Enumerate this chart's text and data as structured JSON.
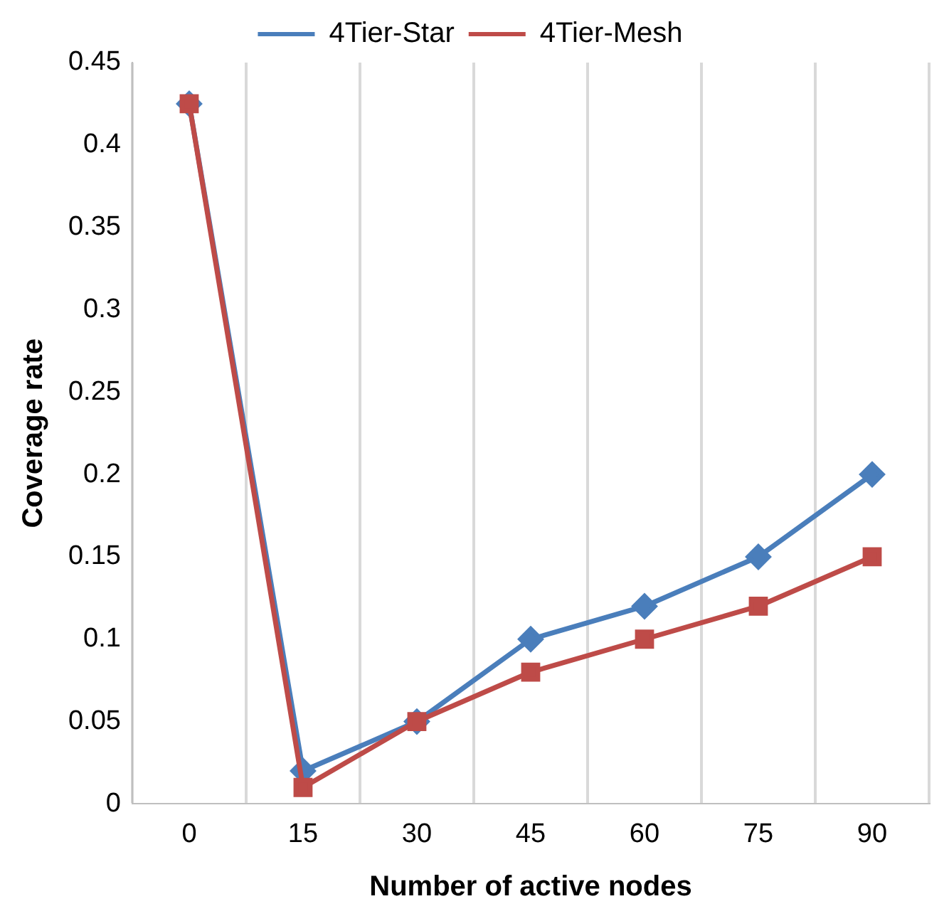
{
  "chart_data": {
    "type": "line",
    "xlabel": "Number of active nodes",
    "ylabel": "Coverage rate",
    "categories": [
      "0",
      "15",
      "30",
      "45",
      "60",
      "75",
      "90"
    ],
    "series": [
      {
        "name": "4Tier-Star",
        "color": "#4a7ebb",
        "marker": "diamond",
        "values": [
          0.425,
          0.02,
          0.05,
          0.1,
          0.12,
          0.15,
          0.2
        ]
      },
      {
        "name": "4Tier-Mesh",
        "color": "#be4b48",
        "marker": "square",
        "values": [
          0.425,
          0.01,
          0.05,
          0.08,
          0.1,
          0.12,
          0.15
        ]
      }
    ],
    "ylim": [
      0,
      0.45
    ],
    "yticks": [
      0,
      0.05,
      0.1,
      0.15,
      0.2,
      0.25,
      0.3,
      0.35,
      0.4,
      0.45
    ],
    "grid": "x",
    "legend": "top",
    "line_style": "solid"
  }
}
